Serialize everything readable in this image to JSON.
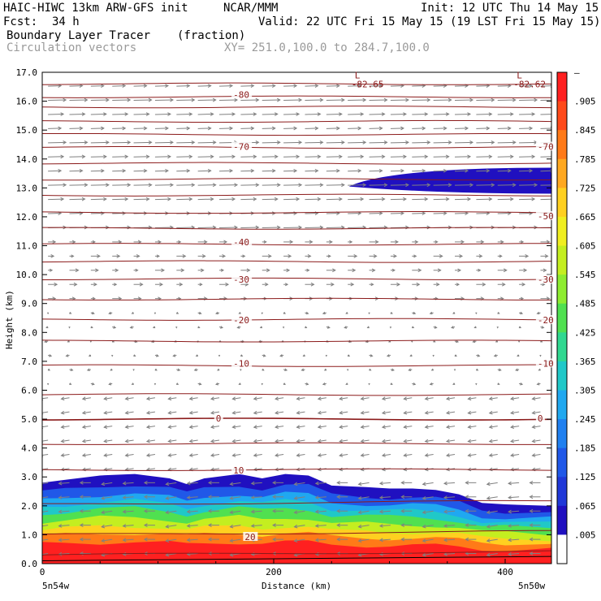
{
  "header": {
    "model": "HAIC-HIWC 13km ARW-GFS init",
    "org": "NCAR/MMM",
    "init": "Init: 12 UTC Thu 14 May 15",
    "fcst_label": "Fcst:",
    "fcst_value": "34 h",
    "valid": "Valid: 22 UTC Fri 15 May 15 (19 LST Fri 15 May 15)",
    "field": "Boundary Layer Tracer",
    "units": "(fraction)",
    "vectors": "Circulation vectors",
    "xy": "XY= 251.0,100.0 to 284.7,100.0"
  },
  "colorbar": {
    "labels": [
      "–",
      ".905",
      ".845",
      ".785",
      ".725",
      ".665",
      ".605",
      ".545",
      ".485",
      ".425",
      ".365",
      ".305",
      ".245",
      ".185",
      ".125",
      ".065",
      ".005"
    ],
    "colors": [
      "#ff2020",
      "#ff4a1a",
      "#ff7a18",
      "#ffa820",
      "#ffd020",
      "#f0ee20",
      "#c4ee20",
      "#8eec30",
      "#50e050",
      "#30d890",
      "#20c8c8",
      "#20a8f0",
      "#2080f0",
      "#2058e8",
      "#2038d8",
      "#2010c0",
      "#ffffff"
    ]
  },
  "chart_data": {
    "type": "cross-section",
    "ylabel": "Height (km)",
    "xlabel": "Distance (km)",
    "x_left_label": "5n54w",
    "x_right_label": "5n50w",
    "xlim": [
      0,
      440
    ],
    "ylim": [
      0,
      17
    ],
    "xticks": [
      "0",
      "200",
      "400"
    ],
    "yticks": [
      "0.0",
      "1.0",
      "2.0",
      "3.0",
      "4.0",
      "5.0",
      "6.0",
      "7.0",
      "8.0",
      "9.0",
      "10.0",
      "11.0",
      "12.0",
      "13.0",
      "14.0",
      "15.0",
      "16.0",
      "17.0"
    ],
    "temperature_contour_labels": [
      {
        "text": "-80",
        "x": 165,
        "y": 16.2
      },
      {
        "text": "-70",
        "x": 165,
        "y": 14.4
      },
      {
        "text": "-70",
        "x": 428,
        "y": 14.4
      },
      {
        "text": "-50",
        "x": 428,
        "y": 12.0
      },
      {
        "text": "-40",
        "x": 165,
        "y": 11.1
      },
      {
        "text": "-30",
        "x": 165,
        "y": 9.8
      },
      {
        "text": "-30",
        "x": 428,
        "y": 9.8
      },
      {
        "text": "-20",
        "x": 165,
        "y": 8.4
      },
      {
        "text": "-20",
        "x": 428,
        "y": 8.4
      },
      {
        "text": "-10",
        "x": 165,
        "y": 6.9
      },
      {
        "text": "-10",
        "x": 428,
        "y": 6.9
      },
      {
        "text": "0",
        "x": 150,
        "y": 5.0
      },
      {
        "text": "0",
        "x": 428,
        "y": 5.0
      },
      {
        "text": "10",
        "x": 165,
        "y": 3.2
      },
      {
        "text": "20",
        "x": 175,
        "y": 0.9
      }
    ],
    "lows": [
      {
        "marker": "L",
        "value": "-82.65",
        "x": 270,
        "y": 16.9
      },
      {
        "marker": "L",
        "value": "-82.62",
        "x": 410,
        "y": 16.9
      }
    ],
    "tracer_top_km": [
      {
        "x": 0,
        "top": 2.8
      },
      {
        "x": 20,
        "top": 2.9
      },
      {
        "x": 50,
        "top": 3.05
      },
      {
        "x": 80,
        "top": 3.1
      },
      {
        "x": 110,
        "top": 2.95
      },
      {
        "x": 125,
        "top": 2.75
      },
      {
        "x": 140,
        "top": 2.95
      },
      {
        "x": 170,
        "top": 3.1
      },
      {
        "x": 190,
        "top": 2.95
      },
      {
        "x": 210,
        "top": 3.1
      },
      {
        "x": 230,
        "top": 3.05
      },
      {
        "x": 250,
        "top": 2.7
      },
      {
        "x": 280,
        "top": 2.65
      },
      {
        "x": 300,
        "top": 2.6
      },
      {
        "x": 320,
        "top": 2.6
      },
      {
        "x": 340,
        "top": 2.55
      },
      {
        "x": 360,
        "top": 2.4
      },
      {
        "x": 380,
        "top": 2.1
      },
      {
        "x": 400,
        "top": 2.05
      },
      {
        "x": 440,
        "top": 2.0
      }
    ],
    "upper_plume": {
      "x_start": 265,
      "x_end": 440,
      "top": 13.7,
      "bottom": 12.8
    }
  }
}
